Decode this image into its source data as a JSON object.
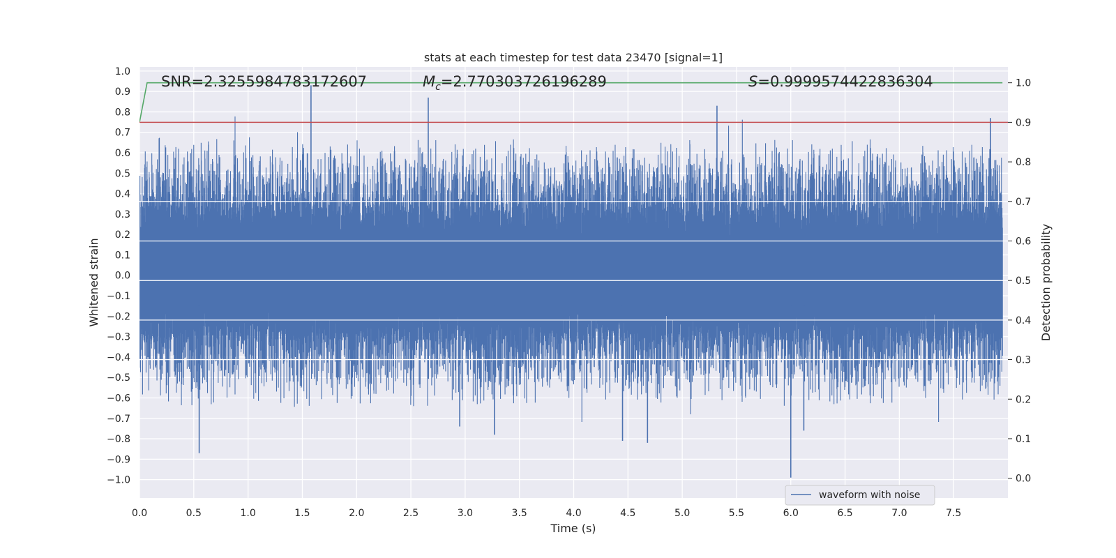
{
  "chart_data": {
    "type": "line",
    "title": "stats at each timestep for test data 23470 [signal=1]",
    "xlabel": "Time (s)",
    "ylabel_left": "Whitened strain",
    "ylabel_right": "Detection probability",
    "xlim": [
      0.0,
      8.0
    ],
    "ylim_left": [
      -1.09,
      1.02
    ],
    "ylim_right": [
      -0.05,
      1.04
    ],
    "x_ticks": [
      "0.0",
      "0.5",
      "1.0",
      "1.5",
      "2.0",
      "2.5",
      "3.0",
      "3.5",
      "4.0",
      "4.5",
      "5.0",
      "5.5",
      "6.0",
      "6.5",
      "7.0",
      "7.5"
    ],
    "x_tick_values": [
      0.0,
      0.5,
      1.0,
      1.5,
      2.0,
      2.5,
      3.0,
      3.5,
      4.0,
      4.5,
      5.0,
      5.5,
      6.0,
      6.5,
      7.0,
      7.5
    ],
    "y_left_ticks": [
      "1.0",
      "0.9",
      "0.8",
      "0.7",
      "0.6",
      "0.5",
      "0.4",
      "0.3",
      "0.2",
      "0.1",
      "0.0",
      "−0.1",
      "−0.2",
      "−0.3",
      "−0.4",
      "−0.5",
      "−0.6",
      "−0.7",
      "−0.8",
      "−0.9",
      "−1.0"
    ],
    "y_left_tick_values": [
      1.0,
      0.9,
      0.8,
      0.7,
      0.6,
      0.5,
      0.4,
      0.3,
      0.2,
      0.1,
      0.0,
      -0.1,
      -0.2,
      -0.3,
      -0.4,
      -0.5,
      -0.6,
      -0.7,
      -0.8,
      -0.9,
      -1.0
    ],
    "y_right_ticks": [
      "1.0",
      "0.9",
      "0.8",
      "0.7",
      "0.6",
      "0.5",
      "0.4",
      "0.3",
      "0.2",
      "0.1",
      "0.0"
    ],
    "y_right_tick_values": [
      1.0,
      0.9,
      0.8,
      0.7,
      0.6,
      0.5,
      0.4,
      0.3,
      0.2,
      0.1,
      0.0
    ],
    "grid": true,
    "legend_position": "bottom-right",
    "annotations": {
      "snr": "SNR=2.3255984783172607",
      "mc_symbol": "M",
      "mc_subscript": "c",
      "mc_value": "=2.770303726196289",
      "s_symbol": "S",
      "s_value": "=0.9999574422836304"
    },
    "series": [
      {
        "name": "waveform with noise",
        "axis": "left",
        "color": "#4c72b0",
        "style": "noise",
        "envelope_pos": [
          0.35,
          0.45
        ],
        "envelope_neg": [
          -0.3,
          -0.45
        ],
        "peaks": [
          {
            "x": 0.55,
            "y": -0.87
          },
          {
            "x": 1.58,
            "y": 0.93
          },
          {
            "x": 2.66,
            "y": 0.87
          },
          {
            "x": 2.95,
            "y": -0.74
          },
          {
            "x": 3.27,
            "y": -0.78
          },
          {
            "x": 4.45,
            "y": -0.81
          },
          {
            "x": 4.68,
            "y": -0.82
          },
          {
            "x": 5.32,
            "y": 0.83
          },
          {
            "x": 6.0,
            "y": -0.99
          },
          {
            "x": 6.12,
            "y": -0.76
          },
          {
            "x": 7.84,
            "y": 0.77
          }
        ]
      },
      {
        "axis": "right",
        "color": "#55a868",
        "x": [
          0.0,
          0.07,
          0.5,
          1.0,
          2.0,
          3.0,
          4.0,
          5.0,
          6.0,
          7.0,
          7.95
        ],
        "values": [
          0.9,
          1.0,
          1.0,
          1.0,
          1.0,
          1.0,
          1.0,
          1.0,
          1.0,
          1.0,
          1.0
        ]
      },
      {
        "axis": "right",
        "color": "#c44e52",
        "x": [
          0.0,
          8.0
        ],
        "values": [
          0.9,
          0.9
        ]
      }
    ]
  }
}
